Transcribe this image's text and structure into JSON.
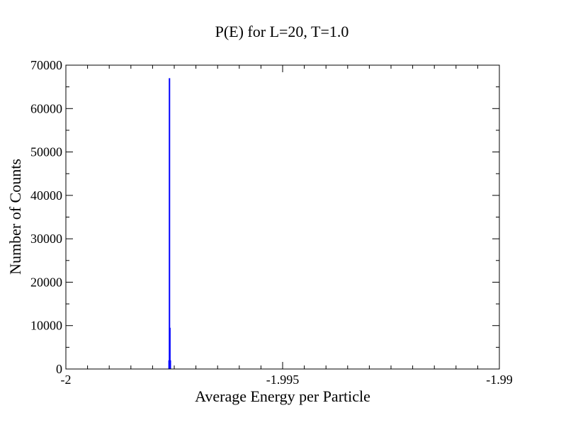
{
  "chart_data": {
    "type": "bar",
    "title": "P(E) for L=20, T=1.0",
    "xlabel": "Average Energy per Particle",
    "ylabel": "Number of Counts",
    "xlim": [
      -2,
      -1.99
    ],
    "ylim": [
      0,
      70000
    ],
    "x_ticks": [
      {
        "value": -2,
        "label": "-2"
      },
      {
        "value": -1.995,
        "label": "-1.995"
      },
      {
        "value": -1.99,
        "label": "-1.99"
      }
    ],
    "y_ticks": [
      {
        "value": 0,
        "label": "0"
      },
      {
        "value": 10000,
        "label": "10000"
      },
      {
        "value": 20000,
        "label": "20000"
      },
      {
        "value": 30000,
        "label": "30000"
      },
      {
        "value": 40000,
        "label": "40000"
      },
      {
        "value": 50000,
        "label": "50000"
      },
      {
        "value": 60000,
        "label": "60000"
      },
      {
        "value": 70000,
        "label": "70000"
      }
    ],
    "x_minor_step": 0.0005,
    "y_minor_step": 5000,
    "grid": false,
    "series": [
      {
        "color": "#0000ff",
        "points": [
          {
            "x": -1.99762,
            "y": 2000
          },
          {
            "x": -1.99761,
            "y": 67000
          },
          {
            "x": -1.9976,
            "y": 9500
          },
          {
            "x": -1.99759,
            "y": 2000
          }
        ]
      }
    ]
  }
}
